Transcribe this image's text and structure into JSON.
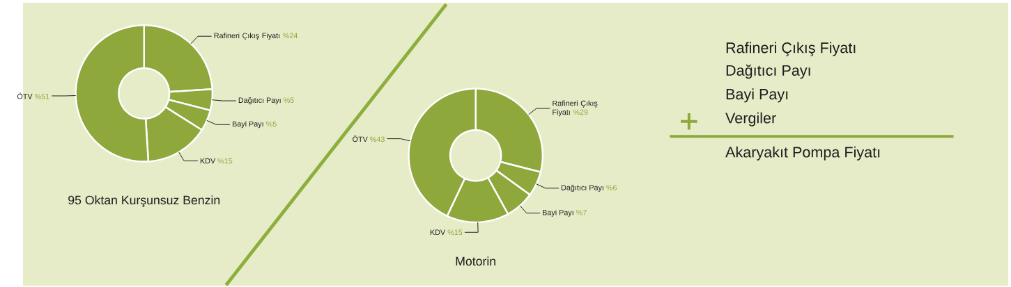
{
  "chart_data": [
    {
      "type": "donut",
      "title": "95 Oktan Kurşunsuz Benzin",
      "categories": [
        "Rafineri Çıkış Fiyatı",
        "Dağıtıcı Payı",
        "Bayi Payı",
        "KDV",
        "ÖTV"
      ],
      "values": [
        24,
        5,
        5,
        15,
        51
      ],
      "value_labels": [
        "%24",
        "%5",
        "%5",
        "%15",
        "%51"
      ],
      "colors": [
        "#8ea83c",
        "#8ea83c",
        "#8ea83c",
        "#8ea83c",
        "#8ea83c"
      ]
    },
    {
      "type": "donut",
      "title": "Motorin",
      "categories": [
        "Rafineri Çıkış Fiyatı",
        "Dağıtıcı Payı",
        "Bayi Payı",
        "KDV",
        "ÖTV"
      ],
      "values": [
        29,
        6,
        7,
        15,
        43
      ],
      "value_labels": [
        "%29",
        "%6",
        "%7",
        "%15",
        "%43"
      ],
      "colors": [
        "#8ea83c",
        "#8ea83c",
        "#8ea83c",
        "#8ea83c",
        "#8ea83c"
      ]
    },
    {
      "type": "other",
      "annotations": [
        "Rafineri Çıkış Fiyatı",
        "Dağıtıcı Payı",
        "Bayi Payı",
        "Vergiler",
        "Akaryakıt Pompa Fiyatı"
      ]
    }
  ]
}
